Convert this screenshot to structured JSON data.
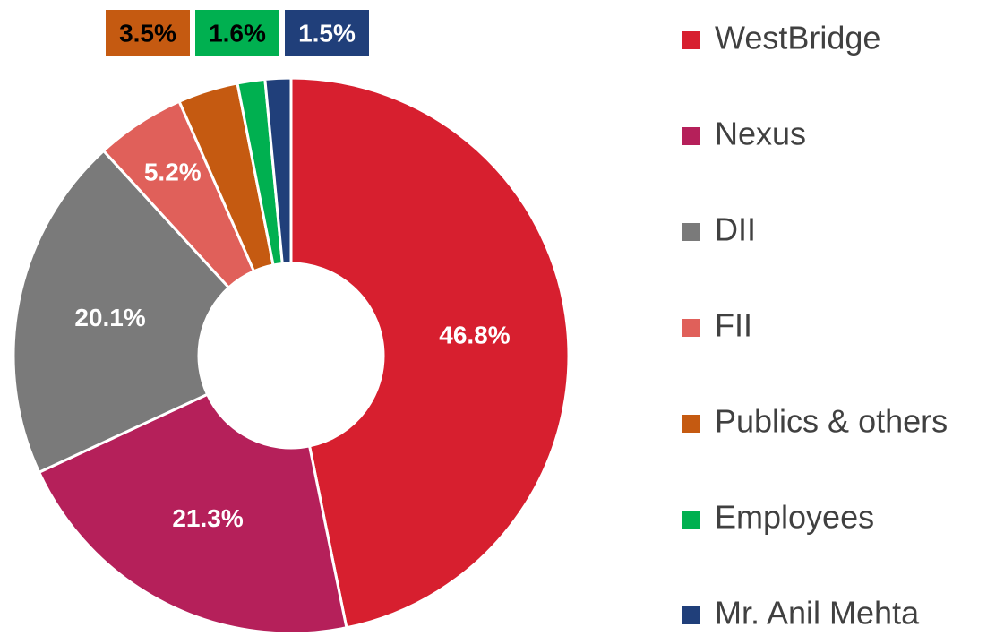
{
  "chart_data": {
    "type": "donut",
    "categories": [
      "WestBridge",
      "Nexus",
      "DII",
      "FII",
      "Publics & others",
      "Employees",
      "Mr. Anil Mehta"
    ],
    "values": [
      46.8,
      21.3,
      20.1,
      5.2,
      3.5,
      1.6,
      1.5
    ],
    "value_labels": [
      "46.8%",
      "21.3%",
      "20.1%",
      "5.2%",
      "3.5%",
      "1.6%",
      "1.5%"
    ],
    "colors": [
      "#d71f2f",
      "#b5205a",
      "#7a7a7a",
      "#e0605a",
      "#c55a11",
      "#00b050",
      "#203f7a"
    ],
    "legend": "right"
  }
}
